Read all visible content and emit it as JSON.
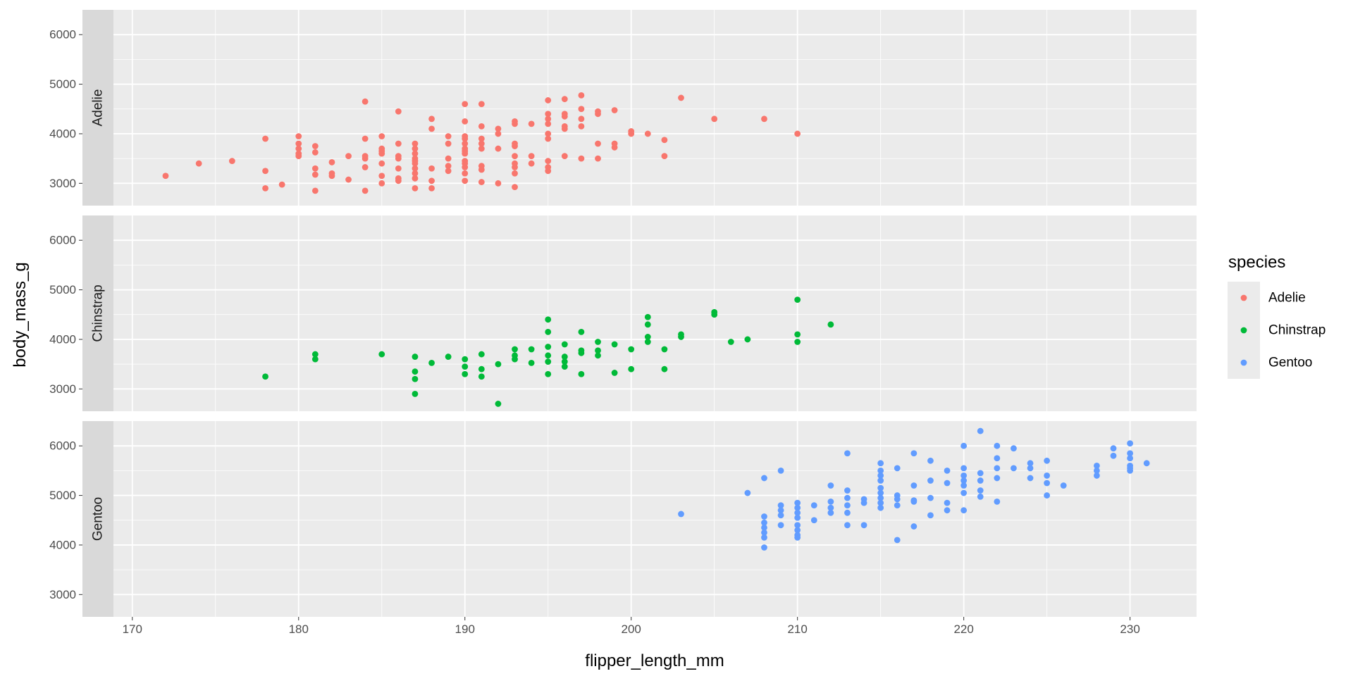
{
  "chart_data": {
    "type": "scatter",
    "facet": "rows",
    "xlabel": "flipper_length_mm",
    "ylabel": "body_mass_g",
    "xlim": [
      167,
      234
    ],
    "ylim": [
      2550,
      6500
    ],
    "xticks": [
      170,
      180,
      190,
      200,
      210,
      220,
      230
    ],
    "yticks": [
      3000,
      4000,
      5000,
      6000
    ],
    "grid": true,
    "legend": {
      "title": "species",
      "position": "right"
    },
    "series": [
      {
        "name": "Adelie",
        "strip": "Adelie",
        "color": "#F8766D",
        "points": [
          [
            172,
            3150
          ],
          [
            174,
            3400
          ],
          [
            176,
            3450
          ],
          [
            178,
            3900
          ],
          [
            178,
            3250
          ],
          [
            178,
            2900
          ],
          [
            179,
            2975
          ],
          [
            180,
            3950
          ],
          [
            180,
            3800
          ],
          [
            180,
            3700
          ],
          [
            180,
            3600
          ],
          [
            180,
            3550
          ],
          [
            181,
            3750
          ],
          [
            181,
            3625
          ],
          [
            181,
            3300
          ],
          [
            181,
            3175
          ],
          [
            181,
            2850
          ],
          [
            182,
            3425
          ],
          [
            182,
            3200
          ],
          [
            182,
            3150
          ],
          [
            183,
            3550
          ],
          [
            183,
            3075
          ],
          [
            184,
            4650
          ],
          [
            184,
            3900
          ],
          [
            184,
            3550
          ],
          [
            184,
            3500
          ],
          [
            184,
            3325
          ],
          [
            184,
            2850
          ],
          [
            185,
            3950
          ],
          [
            185,
            3700
          ],
          [
            185,
            3650
          ],
          [
            185,
            3600
          ],
          [
            185,
            3400
          ],
          [
            185,
            3150
          ],
          [
            185,
            3000
          ],
          [
            186,
            4450
          ],
          [
            186,
            3800
          ],
          [
            186,
            3550
          ],
          [
            186,
            3500
          ],
          [
            186,
            3300
          ],
          [
            186,
            3100
          ],
          [
            186,
            3050
          ],
          [
            187,
            3800
          ],
          [
            187,
            3700
          ],
          [
            187,
            3600
          ],
          [
            187,
            3500
          ],
          [
            187,
            3450
          ],
          [
            187,
            3400
          ],
          [
            187,
            3300
          ],
          [
            187,
            3200
          ],
          [
            187,
            3100
          ],
          [
            187,
            2900
          ],
          [
            188,
            4300
          ],
          [
            188,
            4100
          ],
          [
            188,
            3300
          ],
          [
            188,
            3050
          ],
          [
            188,
            2900
          ],
          [
            189,
            3950
          ],
          [
            189,
            3800
          ],
          [
            189,
            3500
          ],
          [
            189,
            3350
          ],
          [
            189,
            3250
          ],
          [
            190,
            4600
          ],
          [
            190,
            4250
          ],
          [
            190,
            3950
          ],
          [
            190,
            3900
          ],
          [
            190,
            3800
          ],
          [
            190,
            3700
          ],
          [
            190,
            3650
          ],
          [
            190,
            3600
          ],
          [
            190,
            3450
          ],
          [
            190,
            3400
          ],
          [
            190,
            3325
          ],
          [
            190,
            3200
          ],
          [
            190,
            3050
          ],
          [
            191,
            4600
          ],
          [
            191,
            4150
          ],
          [
            191,
            3900
          ],
          [
            191,
            3800
          ],
          [
            191,
            3700
          ],
          [
            191,
            3350
          ],
          [
            191,
            3275
          ],
          [
            191,
            3025
          ],
          [
            192,
            4100
          ],
          [
            192,
            4000
          ],
          [
            192,
            3700
          ],
          [
            192,
            3000
          ],
          [
            193,
            4250
          ],
          [
            193,
            4200
          ],
          [
            193,
            3800
          ],
          [
            193,
            3750
          ],
          [
            193,
            3550
          ],
          [
            193,
            3400
          ],
          [
            193,
            3325
          ],
          [
            193,
            3200
          ],
          [
            193,
            2925
          ],
          [
            194,
            4200
          ],
          [
            194,
            3550
          ],
          [
            194,
            3400
          ],
          [
            195,
            4675
          ],
          [
            195,
            4400
          ],
          [
            195,
            4300
          ],
          [
            195,
            4200
          ],
          [
            195,
            4000
          ],
          [
            195,
            3900
          ],
          [
            195,
            3450
          ],
          [
            195,
            3325
          ],
          [
            195,
            3250
          ],
          [
            196,
            4700
          ],
          [
            196,
            4400
          ],
          [
            196,
            4350
          ],
          [
            196,
            4150
          ],
          [
            196,
            4100
          ],
          [
            196,
            3550
          ],
          [
            197,
            4775
          ],
          [
            197,
            4500
          ],
          [
            197,
            4300
          ],
          [
            197,
            4150
          ],
          [
            197,
            3500
          ],
          [
            198,
            4450
          ],
          [
            198,
            4400
          ],
          [
            198,
            3800
          ],
          [
            198,
            3500
          ],
          [
            199,
            4475
          ],
          [
            199,
            3800
          ],
          [
            199,
            3725
          ],
          [
            200,
            4050
          ],
          [
            200,
            4000
          ],
          [
            201,
            4000
          ],
          [
            202,
            3875
          ],
          [
            202,
            3550
          ],
          [
            203,
            4725
          ],
          [
            205,
            4300
          ],
          [
            208,
            4300
          ],
          [
            210,
            4000
          ]
        ]
      },
      {
        "name": "Chinstrap",
        "strip": "Chinstrap",
        "color": "#00BA38",
        "points": [
          [
            178,
            3250
          ],
          [
            181,
            3700
          ],
          [
            181,
            3600
          ],
          [
            185,
            3700
          ],
          [
            187,
            3650
          ],
          [
            187,
            3350
          ],
          [
            187,
            3200
          ],
          [
            187,
            2900
          ],
          [
            188,
            3525
          ],
          [
            189,
            3650
          ],
          [
            190,
            3600
          ],
          [
            190,
            3450
          ],
          [
            190,
            3300
          ],
          [
            191,
            3700
          ],
          [
            191,
            3400
          ],
          [
            191,
            3250
          ],
          [
            192,
            3500
          ],
          [
            192,
            2700
          ],
          [
            193,
            3800
          ],
          [
            193,
            3675
          ],
          [
            193,
            3600
          ],
          [
            194,
            3800
          ],
          [
            194,
            3525
          ],
          [
            195,
            4400
          ],
          [
            195,
            4150
          ],
          [
            195,
            3850
          ],
          [
            195,
            3675
          ],
          [
            195,
            3550
          ],
          [
            195,
            3300
          ],
          [
            196,
            3900
          ],
          [
            196,
            3650
          ],
          [
            196,
            3550
          ],
          [
            196,
            3450
          ],
          [
            197,
            4150
          ],
          [
            197,
            3775
          ],
          [
            197,
            3725
          ],
          [
            197,
            3300
          ],
          [
            198,
            3950
          ],
          [
            198,
            3775
          ],
          [
            198,
            3675
          ],
          [
            199,
            3900
          ],
          [
            199,
            3325
          ],
          [
            200,
            3800
          ],
          [
            200,
            3400
          ],
          [
            201,
            4450
          ],
          [
            201,
            4300
          ],
          [
            201,
            4050
          ],
          [
            201,
            3950
          ],
          [
            202,
            3800
          ],
          [
            202,
            3400
          ],
          [
            203,
            4100
          ],
          [
            203,
            4050
          ],
          [
            205,
            4550
          ],
          [
            205,
            4500
          ],
          [
            206,
            3950
          ],
          [
            207,
            4000
          ],
          [
            210,
            4800
          ],
          [
            210,
            4100
          ],
          [
            210,
            3950
          ],
          [
            212,
            4300
          ]
        ]
      },
      {
        "name": "Gentoo",
        "strip": "Gentoo",
        "color": "#619CFF",
        "points": [
          [
            203,
            4625
          ],
          [
            207,
            5050
          ],
          [
            208,
            5350
          ],
          [
            208,
            4575
          ],
          [
            208,
            4450
          ],
          [
            208,
            4350
          ],
          [
            208,
            4250
          ],
          [
            208,
            4150
          ],
          [
            208,
            3950
          ],
          [
            209,
            5500
          ],
          [
            209,
            4800
          ],
          [
            209,
            4700
          ],
          [
            209,
            4600
          ],
          [
            209,
            4400
          ],
          [
            210,
            4850
          ],
          [
            210,
            4750
          ],
          [
            210,
            4650
          ],
          [
            210,
            4550
          ],
          [
            210,
            4400
          ],
          [
            210,
            4300
          ],
          [
            210,
            4200
          ],
          [
            210,
            4150
          ],
          [
            211,
            4800
          ],
          [
            211,
            4500
          ],
          [
            212,
            5200
          ],
          [
            212,
            4875
          ],
          [
            212,
            4750
          ],
          [
            212,
            4650
          ],
          [
            213,
            5850
          ],
          [
            213,
            5100
          ],
          [
            213,
            4950
          ],
          [
            213,
            4800
          ],
          [
            213,
            4650
          ],
          [
            213,
            4400
          ],
          [
            214,
            4925
          ],
          [
            214,
            4850
          ],
          [
            214,
            4400
          ],
          [
            215,
            5650
          ],
          [
            215,
            5500
          ],
          [
            215,
            5400
          ],
          [
            215,
            5300
          ],
          [
            215,
            5150
          ],
          [
            215,
            5050
          ],
          [
            215,
            4950
          ],
          [
            215,
            4850
          ],
          [
            215,
            4750
          ],
          [
            216,
            5550
          ],
          [
            216,
            5000
          ],
          [
            216,
            4925
          ],
          [
            216,
            4800
          ],
          [
            216,
            4100
          ],
          [
            217,
            5850
          ],
          [
            217,
            5200
          ],
          [
            217,
            4900
          ],
          [
            217,
            4875
          ],
          [
            217,
            4375
          ],
          [
            218,
            5700
          ],
          [
            218,
            5300
          ],
          [
            218,
            4950
          ],
          [
            218,
            4600
          ],
          [
            219,
            5500
          ],
          [
            219,
            5250
          ],
          [
            219,
            4850
          ],
          [
            219,
            4700
          ],
          [
            220,
            6000
          ],
          [
            220,
            5550
          ],
          [
            220,
            5400
          ],
          [
            220,
            5300
          ],
          [
            220,
            5200
          ],
          [
            220,
            5050
          ],
          [
            220,
            4700
          ],
          [
            221,
            6300
          ],
          [
            221,
            5450
          ],
          [
            221,
            5300
          ],
          [
            221,
            5100
          ],
          [
            221,
            4975
          ],
          [
            222,
            6000
          ],
          [
            222,
            5750
          ],
          [
            222,
            5550
          ],
          [
            222,
            5350
          ],
          [
            222,
            4875
          ],
          [
            223,
            5950
          ],
          [
            223,
            5550
          ],
          [
            224,
            5650
          ],
          [
            224,
            5550
          ],
          [
            224,
            5350
          ],
          [
            225,
            5700
          ],
          [
            225,
            5400
          ],
          [
            225,
            5250
          ],
          [
            225,
            5000
          ],
          [
            226,
            5200
          ],
          [
            228,
            5600
          ],
          [
            228,
            5500
          ],
          [
            228,
            5400
          ],
          [
            229,
            5950
          ],
          [
            229,
            5800
          ],
          [
            230,
            6050
          ],
          [
            230,
            5850
          ],
          [
            230,
            5750
          ],
          [
            230,
            5600
          ],
          [
            230,
            5550
          ],
          [
            230,
            5500
          ],
          [
            231,
            5650
          ]
        ]
      }
    ]
  }
}
